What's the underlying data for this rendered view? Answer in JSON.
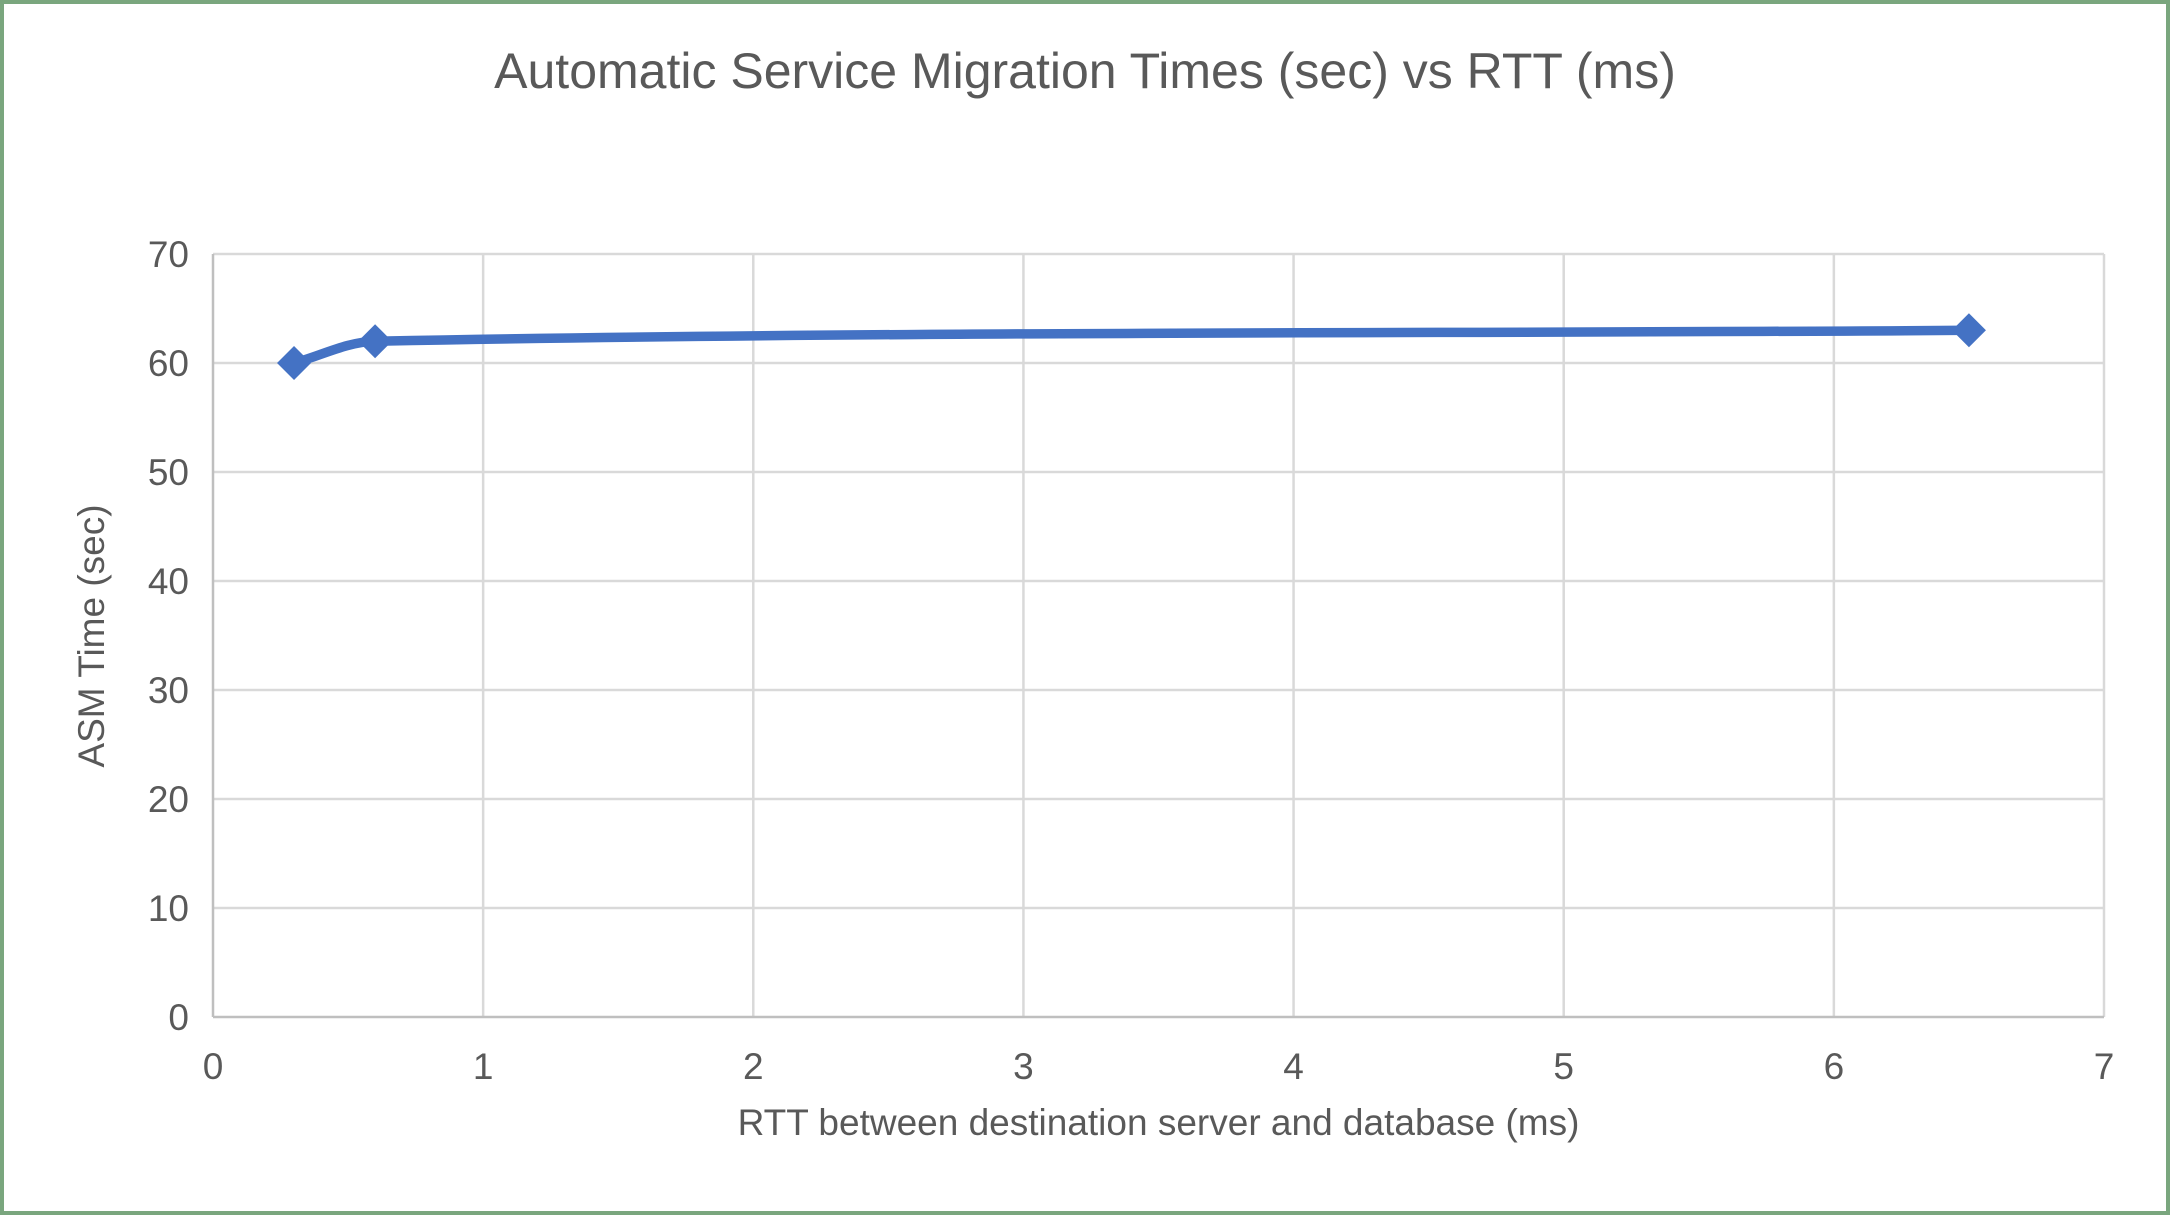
{
  "chart_data": {
    "type": "line",
    "title": "Automatic Service Migration Times (sec) vs RTT (ms)",
    "xlabel": "RTT between destination server and database (ms)",
    "ylabel": "ASM Time (sec)",
    "points": [
      {
        "x": 0.3,
        "y": 60
      },
      {
        "x": 0.6,
        "y": 62
      },
      {
        "x": 6.5,
        "y": 63
      }
    ],
    "xlim": [
      0,
      7
    ],
    "ylim": [
      0,
      70
    ],
    "xticks": [
      0,
      1,
      2,
      3,
      4,
      5,
      6,
      7
    ],
    "yticks": [
      0,
      10,
      20,
      30,
      40,
      50,
      60,
      70
    ],
    "grid": true,
    "legend": "none",
    "smoothed": true,
    "marker": "diamond",
    "colors": {
      "line": "#4472C4",
      "marker": "#4472C4",
      "gridline": "#D9D9D9",
      "axis_line": "#BFBFBF",
      "text": "#595959",
      "page_border": "#7AA67E",
      "background": "#FFFFFF"
    }
  }
}
